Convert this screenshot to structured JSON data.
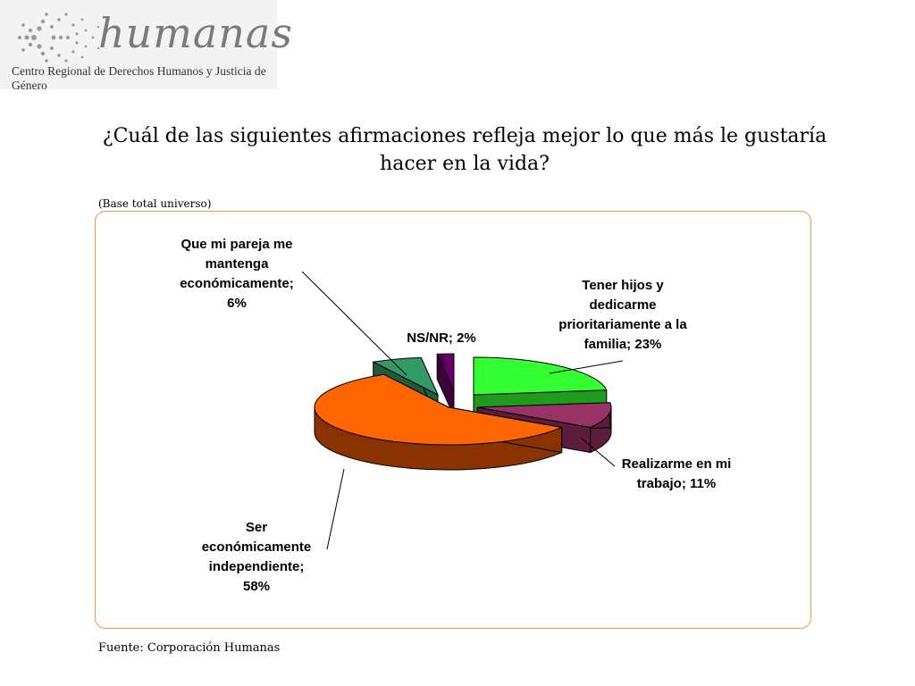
{
  "logo": {
    "wordmark": "humanas",
    "subtitle": "Centro Regional de Derechos Humanos y Justicia de Género"
  },
  "title": "¿Cuál de las siguientes afirmaciones refleja mejor lo que más le gustaría hacer en la vida?",
  "base_note": "(Base total universo)",
  "source": "Fuente: Corporación Humanas",
  "chart_data": {
    "type": "pie",
    "title": "¿Cuál de las siguientes afirmaciones refleja mejor lo que más le gustaría hacer en la vida?",
    "style": "3d-exploded",
    "slices": [
      {
        "label": "Tener hijos y dedicarme prioritariamente a la familia",
        "value": 23,
        "display": "Tener hijos y dedicarme prioritariamente a la familia; 23%",
        "color": "#33ff33",
        "side": "#1f9a1f"
      },
      {
        "label": "Realizarme en mi trabajo",
        "value": 11,
        "display": "Realizarme en mi trabajo; 11%",
        "color": "#993366",
        "side": "#5a1e3c"
      },
      {
        "label": "Ser económicamente independiente",
        "value": 58,
        "display": "Ser económicamente independiente; 58%",
        "color": "#ff6600",
        "side": "#8a3300"
      },
      {
        "label": "Que mi pareja me mantenga económicamente",
        "value": 6,
        "display": "Que mi pareja me mantenga económicamente; 6%",
        "color": "#339966",
        "side": "#1f5c3e"
      },
      {
        "label": "NS/NR",
        "value": 2,
        "display": "NS/NR; 2%",
        "color": "#660066",
        "side": "#3d003d"
      }
    ]
  }
}
